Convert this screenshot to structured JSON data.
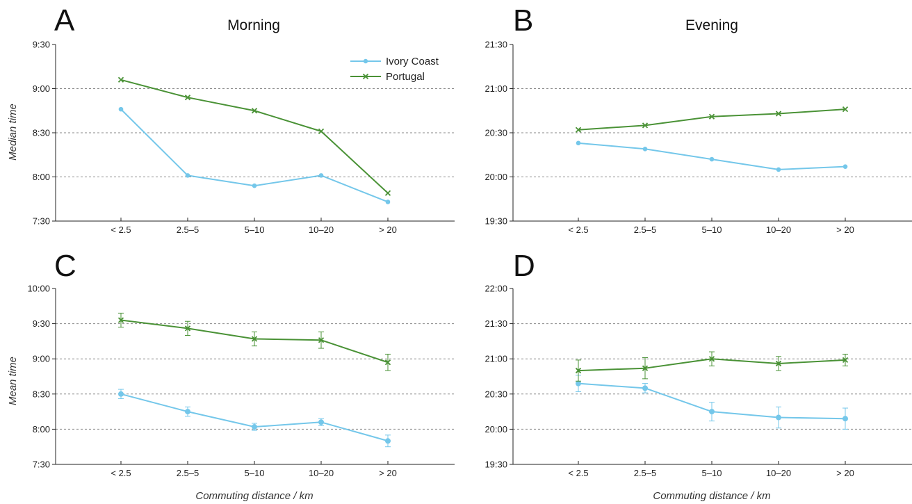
{
  "colors": {
    "ivory": "#74c7ea",
    "portugal": "#4a9236",
    "grid": "#888888",
    "axis": "#222222"
  },
  "legend": {
    "ivory": "Ivory Coast",
    "portugal": "Portugal"
  },
  "ylabels": {
    "top": "Median time",
    "bottom": "Mean time"
  },
  "xlabel": "Commuting distance / km",
  "chart_data": [
    {
      "panel": "A",
      "title": "Morning",
      "type": "line",
      "categories": [
        "< 2.5",
        "2.5–5",
        "5–10",
        "10–20",
        "> 20"
      ],
      "y_unit": "minutes since midnight",
      "ylim": [
        450,
        570
      ],
      "yticks": [
        450,
        480,
        510,
        540,
        570
      ],
      "ytick_labels": [
        "7:30",
        "8:00",
        "8:30",
        "9:00",
        "9:30"
      ],
      "ylabel": "Median time",
      "xlabel": "",
      "grid": true,
      "legend_position": "top-right",
      "series": [
        {
          "name": "Ivory Coast",
          "marker": "circle",
          "values": [
            526,
            481,
            474,
            481,
            463
          ]
        },
        {
          "name": "Portugal",
          "marker": "x",
          "values": [
            546,
            534,
            525,
            511,
            469
          ]
        }
      ]
    },
    {
      "panel": "B",
      "title": "Evening",
      "type": "line",
      "categories": [
        "< 2.5",
        "2.5–5",
        "5–10",
        "10–20",
        "> 20"
      ],
      "y_unit": "minutes since midnight",
      "ylim": [
        1170,
        1290
      ],
      "yticks": [
        1170,
        1200,
        1230,
        1260,
        1290
      ],
      "ytick_labels": [
        "19:30",
        "20:00",
        "20:30",
        "21:00",
        "21:30"
      ],
      "ylabel": "",
      "xlabel": "",
      "grid": true,
      "series": [
        {
          "name": "Ivory Coast",
          "marker": "circle",
          "values": [
            1223,
            1219,
            1212,
            1205,
            1207
          ]
        },
        {
          "name": "Portugal",
          "marker": "x",
          "values": [
            1232,
            1235,
            1241,
            1243,
            1246
          ]
        }
      ]
    },
    {
      "panel": "C",
      "title": "",
      "type": "line",
      "categories": [
        "< 2.5",
        "2.5–5",
        "5–10",
        "10–20",
        "> 20"
      ],
      "y_unit": "minutes since midnight",
      "ylim": [
        450,
        600
      ],
      "yticks": [
        450,
        480,
        510,
        540,
        570,
        600
      ],
      "ytick_labels": [
        "7:30",
        "8:00",
        "8:30",
        "9:00",
        "9:30",
        "10:00"
      ],
      "ylabel": "Mean time",
      "xlabel": "Commuting distance / km",
      "grid": true,
      "series": [
        {
          "name": "Ivory Coast",
          "marker": "circle",
          "values": [
            510,
            495,
            482,
            486,
            470
          ],
          "error": [
            4,
            4,
            3,
            3,
            5
          ]
        },
        {
          "name": "Portugal",
          "marker": "x",
          "values": [
            573,
            566,
            557,
            556,
            537
          ],
          "error": [
            6,
            6,
            6,
            7,
            7
          ]
        }
      ]
    },
    {
      "panel": "D",
      "title": "",
      "type": "line",
      "categories": [
        "< 2.5",
        "2.5–5",
        "5–10",
        "10–20",
        "> 20"
      ],
      "y_unit": "minutes since midnight",
      "ylim": [
        1170,
        1320
      ],
      "yticks": [
        1170,
        1200,
        1230,
        1260,
        1290,
        1320
      ],
      "ytick_labels": [
        "19:30",
        "20:00",
        "20:30",
        "21:00",
        "21:30",
        "22:00"
      ],
      "ylabel": "",
      "xlabel": "Commuting distance / km",
      "grid": true,
      "series": [
        {
          "name": "Ivory Coast",
          "marker": "circle",
          "values": [
            1239,
            1235,
            1215,
            1210,
            1209
          ],
          "error": [
            7,
            4,
            8,
            9,
            9
          ]
        },
        {
          "name": "Portugal",
          "marker": "x",
          "values": [
            1250,
            1252,
            1260,
            1256,
            1259
          ],
          "error": [
            9,
            9,
            6,
            6,
            5
          ]
        }
      ]
    }
  ]
}
